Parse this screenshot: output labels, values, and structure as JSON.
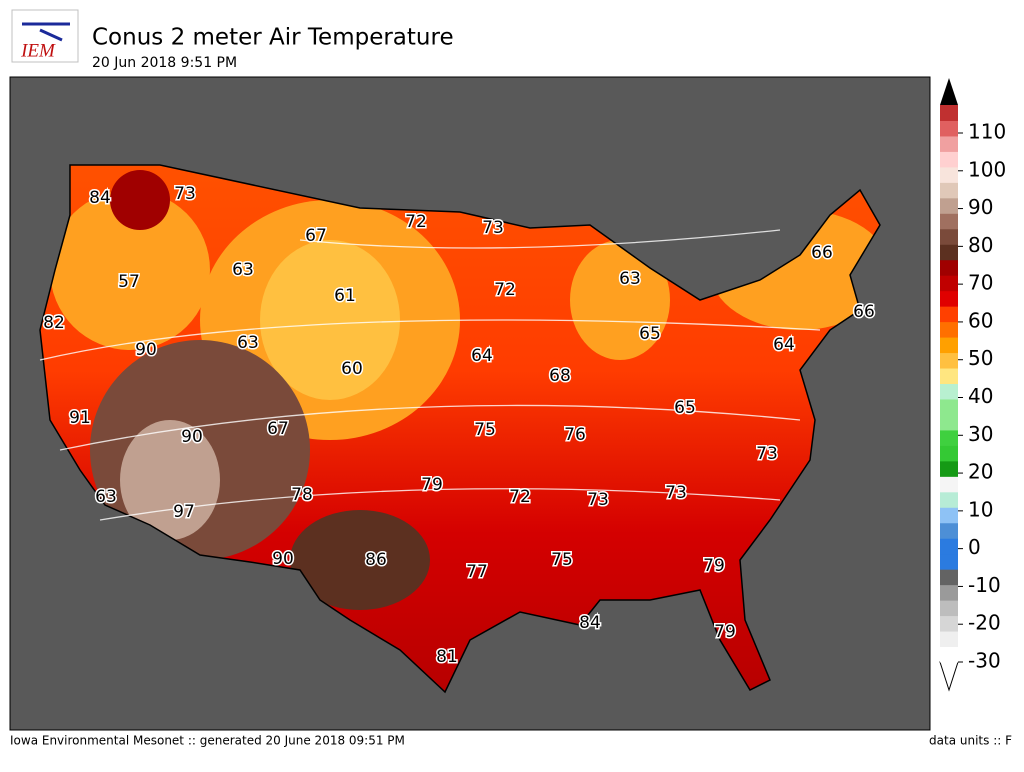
{
  "header": {
    "logo": "IEM",
    "title": "Conus 2 meter Air Temperature",
    "subtitle": "20 Jun 2018 9:51 PM"
  },
  "map": {
    "labels": [
      84,
      73,
      72,
      73,
      67,
      63,
      57,
      61,
      72,
      63,
      66,
      66,
      82,
      90,
      63,
      60,
      64,
      65,
      64,
      68,
      91,
      90,
      67,
      75,
      76,
      65,
      73,
      79,
      78,
      72,
      73,
      73,
      63,
      97,
      90,
      86,
      75,
      77,
      79,
      84,
      79,
      81
    ]
  },
  "colorbar": {
    "ticks": [
      -30,
      -20,
      -10,
      0,
      10,
      20,
      30,
      40,
      50,
      60,
      70,
      80,
      90,
      100,
      110
    ],
    "colors": [
      "#ffffff",
      "#efefef",
      "#d6d6d6",
      "#bdbdbd",
      "#9a9a9a",
      "#636363",
      "#2b7be0",
      "#2b7be0",
      "#4d8fd6",
      "#8ec2f5",
      "#b7ecd6",
      "#f5f5f5",
      "#159a15",
      "#34c934",
      "#3fd03f",
      "#8ee88e",
      "#8ee88e",
      "#b8f0d0",
      "#ffe680",
      "#ffc040",
      "#ffa000",
      "#ff7000",
      "#ff4000",
      "#e00000",
      "#c00000",
      "#a00000",
      "#5c3020",
      "#7a4a3a",
      "#a07060",
      "#c0a090",
      "#e0c8b8",
      "#f8e4dc",
      "#ffd0d0",
      "#f0a0a0",
      "#e06060",
      "#c03030"
    ]
  },
  "footer": {
    "left": "Iowa Environmental Mesonet :: generated 20 June 2018 09:51 PM",
    "right": "data units :: F"
  }
}
